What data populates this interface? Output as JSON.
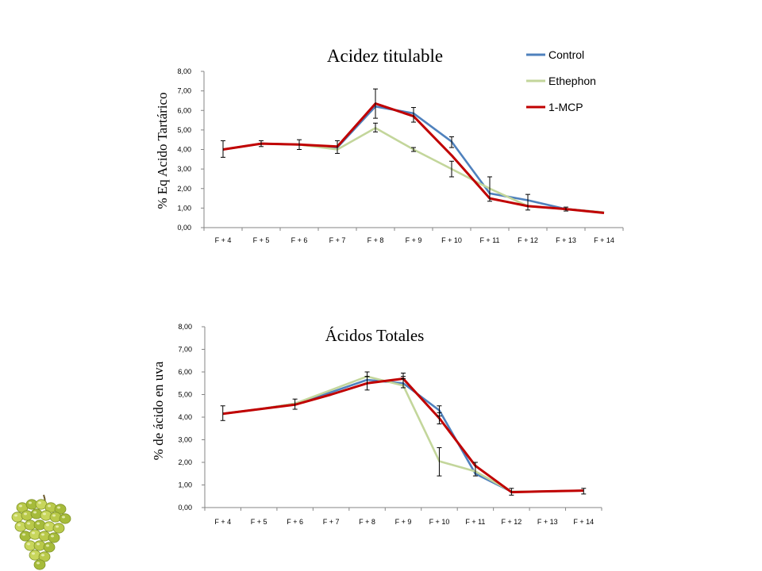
{
  "colors": {
    "control": "#4f81bd",
    "ethephon": "#c3d69b",
    "mcp": "#c00000"
  },
  "decor": {
    "icon": "grape-bunch-icon"
  },
  "chart_data": [
    {
      "type": "line",
      "title": "Acidez titulable",
      "xlabel": "",
      "ylabel": "% Eq Acido Tartárico",
      "ylim": [
        0,
        8
      ],
      "ytick_labels": [
        "0,00",
        "1,00",
        "2,00",
        "3,00",
        "4,00",
        "5,00",
        "6,00",
        "7,00",
        "8,00"
      ],
      "categories": [
        "F + 4",
        "F + 5",
        "F + 6",
        "F + 7",
        "F + 8",
        "F + 9",
        "F + 10",
        "F + 11",
        "F + 12",
        "F + 13",
        "F + 14"
      ],
      "legend_position": "top-right",
      "grid": false,
      "series": [
        {
          "name": "Control",
          "color": "#4f81bd",
          "values": [
            4.0,
            4.3,
            4.25,
            4.1,
            6.2,
            5.85,
            4.4,
            1.75,
            1.4,
            0.95,
            0.78
          ]
        },
        {
          "name": "Ethephon",
          "color": "#c3d69b",
          "values": [
            4.0,
            4.3,
            4.25,
            4.0,
            5.1,
            4.0,
            3.0,
            2.0,
            1.1,
            0.95,
            0.78
          ]
        },
        {
          "name": "1-MCP",
          "color": "#c00000",
          "values": [
            4.0,
            4.3,
            4.25,
            4.15,
            6.35,
            5.7,
            3.7,
            1.5,
            1.1,
            0.95,
            0.75
          ]
        }
      ],
      "error_bars": [
        {
          "x": "F + 4",
          "low": 3.6,
          "high": 4.45
        },
        {
          "x": "F + 5",
          "low": 4.15,
          "high": 4.45
        },
        {
          "x": "F + 6",
          "low": 4.0,
          "high": 4.5
        },
        {
          "x": "F + 7",
          "low": 3.8,
          "high": 4.45
        },
        {
          "x": "F + 8",
          "low": 5.6,
          "high": 7.1
        },
        {
          "x": "F + 8",
          "low": 4.9,
          "high": 5.35
        },
        {
          "x": "F + 9",
          "low": 5.4,
          "high": 6.15
        },
        {
          "x": "F + 9",
          "low": 3.9,
          "high": 4.1
        },
        {
          "x": "F + 10",
          "low": 4.1,
          "high": 4.65
        },
        {
          "x": "F + 10",
          "low": 2.6,
          "high": 3.4
        },
        {
          "x": "F + 11",
          "low": 1.35,
          "high": 2.6
        },
        {
          "x": "F + 12",
          "low": 0.9,
          "high": 1.7
        },
        {
          "x": "F + 13",
          "low": 0.85,
          "high": 1.05
        }
      ]
    },
    {
      "type": "line",
      "title": "Ácidos Totales",
      "xlabel": "",
      "ylabel": "% de ácido en uva",
      "ylim": [
        0,
        8
      ],
      "ytick_labels": [
        "0,00",
        "1,00",
        "2,00",
        "3,00",
        "4,00",
        "5,00",
        "6,00",
        "7,00",
        "8,00"
      ],
      "categories": [
        "F + 4",
        "F + 5",
        "F + 6",
        "F + 7",
        "F + 8",
        "F + 9",
        "F + 10",
        "F + 11",
        "F + 12",
        "F + 13",
        "F + 14"
      ],
      "grid": false,
      "series": [
        {
          "name": "Control",
          "color": "#4f81bd",
          "values": [
            4.15,
            4.35,
            4.6,
            5.1,
            5.65,
            5.5,
            4.3,
            1.5,
            0.7,
            0.72,
            0.75
          ]
        },
        {
          "name": "Ethephon",
          "color": "#c3d69b",
          "values": [
            4.15,
            4.35,
            4.6,
            5.2,
            5.8,
            5.4,
            2.05,
            1.6,
            0.7,
            0.72,
            0.75
          ]
        },
        {
          "name": "1-MCP",
          "color": "#c00000",
          "values": [
            4.15,
            4.35,
            4.55,
            5.0,
            5.5,
            5.7,
            3.95,
            1.85,
            0.68,
            0.72,
            0.75
          ]
        }
      ],
      "error_bars": [
        {
          "x": "F + 4",
          "low": 3.85,
          "high": 4.5
        },
        {
          "x": "F + 6",
          "low": 4.35,
          "high": 4.8
        },
        {
          "x": "F + 8",
          "low": 5.2,
          "high": 5.8
        },
        {
          "x": "F + 8",
          "low": 5.8,
          "high": 6.0
        },
        {
          "x": "F + 9",
          "low": 5.3,
          "high": 5.8
        },
        {
          "x": "F + 9",
          "low": 5.7,
          "high": 5.95
        },
        {
          "x": "F + 10",
          "low": 3.7,
          "high": 4.2
        },
        {
          "x": "F + 10",
          "low": 4.05,
          "high": 4.5
        },
        {
          "x": "F + 10",
          "low": 1.4,
          "high": 2.65
        },
        {
          "x": "F + 11",
          "low": 1.4,
          "high": 2.0
        },
        {
          "x": "F + 12",
          "low": 0.55,
          "high": 0.85
        },
        {
          "x": "F + 14",
          "low": 0.6,
          "high": 0.85
        }
      ]
    }
  ]
}
